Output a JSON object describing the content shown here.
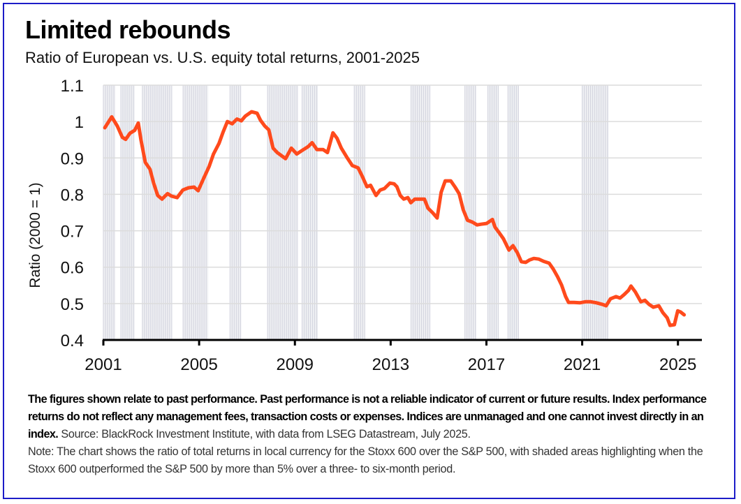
{
  "title": "Limited rebounds",
  "subtitle": "Ratio of European vs. U.S. equity total returns, 2001-2025",
  "footnote": {
    "bold_text": "The figures shown relate to past performance. Past performance is not a reliable indicator of current or future results. Index performance returns do not reflect any management fees, transaction costs or expenses. Indices are unmanaged and one cannot invest directly in an index.",
    "source_text": " Source: BlackRock Investment Institute, with data from LSEG Datastream, July 2025.",
    "note_text": "Note: The chart shows the ratio of total returns in local currency for the Stoxx 600 over the S&P 500, with shaded areas highlighting when the Stoxx 600 outperformed the S&P 500 by more than 5% over a three- to six-month period."
  },
  "colors": {
    "line": "#ff4a1c",
    "shade": "#d5d6e0",
    "grid": "#dcdcdc",
    "border": "#1c1cc8",
    "axis": "#000000"
  },
  "chart_data": {
    "type": "line",
    "title": "Limited rebounds",
    "subtitle": "Ratio of European vs. U.S. equity total returns, 2001-2025",
    "xlabel": "",
    "ylabel": "Ratio (2000 = 1)",
    "xlim": [
      2001,
      2026
    ],
    "ylim": [
      0.4,
      1.1
    ],
    "x_ticks": [
      2001,
      2005,
      2009,
      2013,
      2017,
      2021,
      2025
    ],
    "x_tick_labels": [
      "2001",
      "2005",
      "2009",
      "2013",
      "2017",
      "2021",
      "2025"
    ],
    "y_ticks": [
      0.4,
      0.5,
      0.6,
      0.7,
      0.8,
      0.9,
      1.0,
      1.1
    ],
    "y_tick_labels": [
      "0.4",
      "0.5",
      "0.6",
      "0.7",
      "0.8",
      "0.9",
      "1",
      "1.1"
    ],
    "grid": "horizontal",
    "legend": "none",
    "series": [
      {
        "name": "Stoxx 600 / S&P 500 total return ratio",
        "x": [
          2001.06,
          2001.35,
          2001.58,
          2001.79,
          2001.93,
          2002.11,
          2002.31,
          2002.46,
          2002.57,
          2002.75,
          2002.95,
          2003.1,
          2003.27,
          2003.45,
          2003.68,
          2003.85,
          2004.08,
          2004.32,
          2004.56,
          2004.79,
          2004.96,
          2005.19,
          2005.42,
          2005.6,
          2005.83,
          2006.0,
          2006.18,
          2006.38,
          2006.58,
          2006.76,
          2006.93,
          2007.19,
          2007.42,
          2007.56,
          2007.74,
          2007.91,
          2008.09,
          2008.26,
          2008.61,
          2008.85,
          2009.08,
          2009.31,
          2009.55,
          2009.72,
          2009.92,
          2010.18,
          2010.36,
          2010.59,
          2010.76,
          2010.94,
          2011.17,
          2011.4,
          2011.64,
          2011.81,
          2012.01,
          2012.16,
          2012.39,
          2012.56,
          2012.74,
          2012.97,
          2013.14,
          2013.26,
          2013.4,
          2013.55,
          2013.72,
          2013.84,
          2014.01,
          2014.24,
          2014.41,
          2014.56,
          2014.76,
          2014.94,
          2015.11,
          2015.28,
          2015.51,
          2015.69,
          2015.86,
          2016.03,
          2016.21,
          2016.41,
          2016.61,
          2016.78,
          2017.01,
          2017.25,
          2017.36,
          2017.53,
          2017.71,
          2017.94,
          2018.11,
          2018.29,
          2018.46,
          2018.64,
          2018.81,
          2018.98,
          2019.19,
          2019.39,
          2019.62,
          2019.79,
          2019.97,
          2020.14,
          2020.31,
          2020.43,
          2020.66,
          2020.9,
          2021.13,
          2021.36,
          2021.6,
          2021.83,
          2022.0,
          2022.18,
          2022.41,
          2022.58,
          2022.76,
          2022.93,
          2023.04,
          2023.22,
          2023.45,
          2023.62,
          2023.79,
          2023.97,
          2024.2,
          2024.37,
          2024.55,
          2024.67,
          2024.85,
          2024.99,
          2025.11,
          2025.26
        ],
        "y": [
          0.983,
          1.013,
          0.988,
          0.957,
          0.951,
          0.968,
          0.976,
          0.996,
          0.95,
          0.888,
          0.869,
          0.831,
          0.797,
          0.787,
          0.802,
          0.795,
          0.791,
          0.812,
          0.818,
          0.82,
          0.81,
          0.844,
          0.877,
          0.911,
          0.94,
          0.971,
          1.0,
          0.994,
          1.007,
          1.002,
          1.015,
          1.027,
          1.023,
          1.004,
          0.988,
          0.977,
          0.927,
          0.915,
          0.898,
          0.927,
          0.911,
          0.921,
          0.931,
          0.942,
          0.923,
          0.923,
          0.915,
          0.969,
          0.954,
          0.927,
          0.902,
          0.879,
          0.873,
          0.85,
          0.821,
          0.825,
          0.797,
          0.812,
          0.816,
          0.831,
          0.829,
          0.821,
          0.797,
          0.787,
          0.791,
          0.777,
          0.787,
          0.787,
          0.787,
          0.762,
          0.749,
          0.735,
          0.806,
          0.837,
          0.837,
          0.82,
          0.802,
          0.758,
          0.729,
          0.724,
          0.716,
          0.718,
          0.72,
          0.731,
          0.71,
          0.695,
          0.678,
          0.647,
          0.659,
          0.64,
          0.615,
          0.613,
          0.62,
          0.624,
          0.622,
          0.616,
          0.611,
          0.595,
          0.574,
          0.551,
          0.519,
          0.503,
          0.503,
          0.502,
          0.505,
          0.505,
          0.502,
          0.498,
          0.494,
          0.513,
          0.519,
          0.515,
          0.525,
          0.536,
          0.548,
          0.532,
          0.505,
          0.509,
          0.498,
          0.49,
          0.494,
          0.475,
          0.461,
          0.44,
          0.442,
          0.48,
          0.477,
          0.469
        ]
      }
    ],
    "shaded_periods": [
      {
        "start": 2001.0,
        "end": 2001.5
      },
      {
        "start": 2001.73,
        "end": 2002.31
      },
      {
        "start": 2002.63,
        "end": 2003.86
      },
      {
        "start": 2004.33,
        "end": 2005.38
      },
      {
        "start": 2006.29,
        "end": 2006.76
      },
      {
        "start": 2007.86,
        "end": 2009.14
      },
      {
        "start": 2009.3,
        "end": 2009.96
      },
      {
        "start": 2011.48,
        "end": 2011.92
      },
      {
        "start": 2013.85,
        "end": 2014.64
      },
      {
        "start": 2016.1,
        "end": 2016.58
      },
      {
        "start": 2017.06,
        "end": 2017.5
      },
      {
        "start": 2017.9,
        "end": 2018.34
      },
      {
        "start": 2021.0,
        "end": 2022.11
      }
    ],
    "shaded_meaning": "Stoxx 600 outperformed the S&P 500 by more than 5% over a three- to six-month period"
  }
}
